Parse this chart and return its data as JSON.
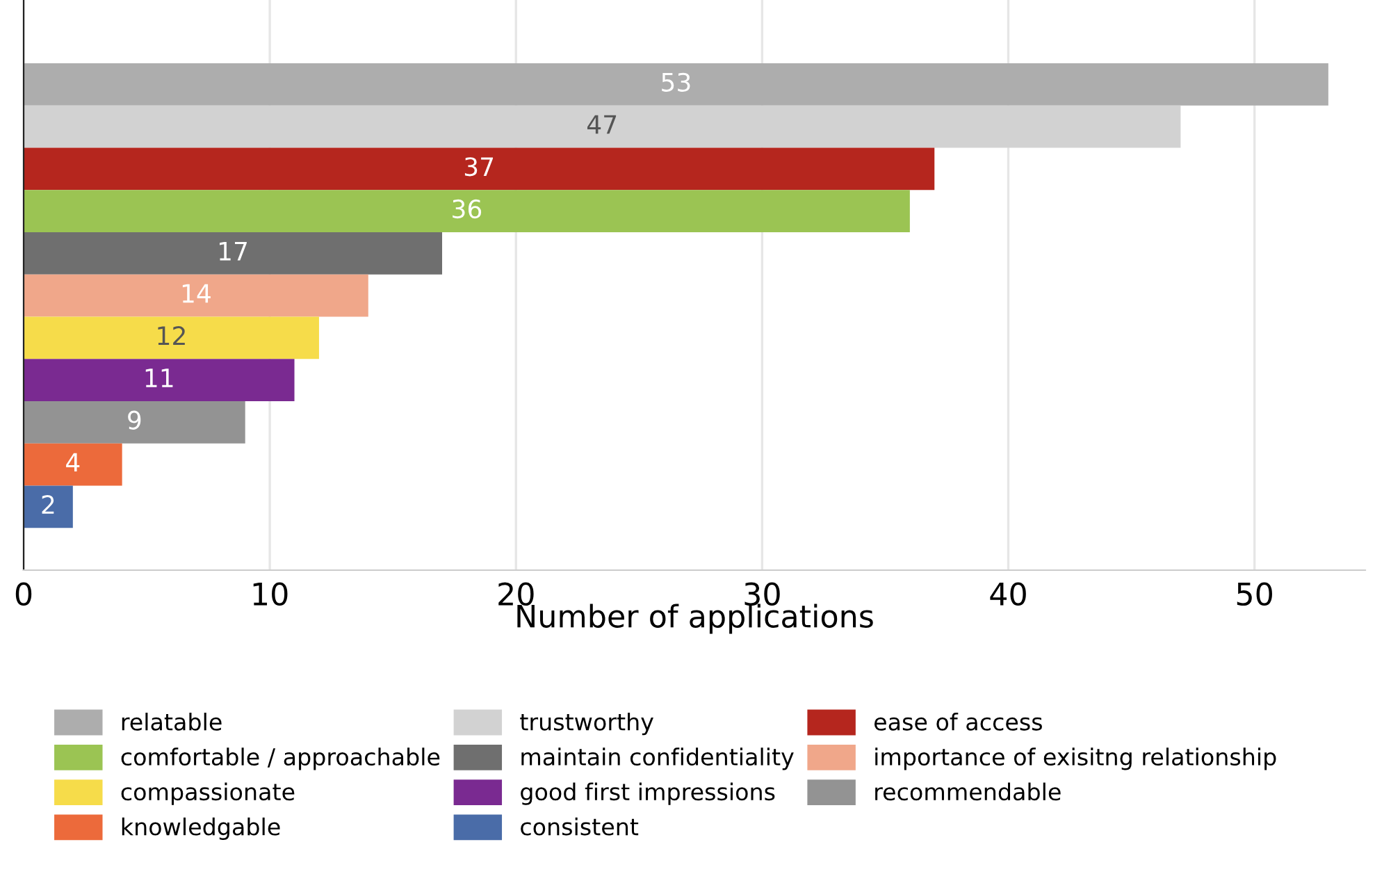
{
  "chart_data": {
    "type": "bar",
    "orientation": "horizontal",
    "stacked": true,
    "xlabel": "Number of applications",
    "categories": [
      null,
      null,
      null,
      null,
      null,
      null,
      null,
      null,
      null,
      null,
      null
    ],
    "series": [
      {
        "name": "relatable",
        "color": "#adadad",
        "values": [
          53,
          null,
          null,
          null,
          null,
          null,
          null,
          null,
          null,
          null,
          null
        ]
      },
      {
        "name": "trustworthy",
        "color": "#d2d2d2",
        "values": [
          null,
          47,
          null,
          null,
          null,
          null,
          null,
          null,
          null,
          null,
          null
        ]
      },
      {
        "name": "ease of access",
        "color": "#b5261e",
        "values": [
          null,
          null,
          37,
          null,
          null,
          null,
          null,
          null,
          null,
          null,
          null
        ]
      },
      {
        "name": "comfortable / approachable",
        "color": "#9bc453",
        "values": [
          null,
          null,
          null,
          36,
          null,
          null,
          null,
          null,
          null,
          null,
          null
        ]
      },
      {
        "name": "maintain confidentiality",
        "color": "#6f6f6f",
        "values": [
          null,
          null,
          null,
          null,
          17,
          null,
          null,
          null,
          null,
          null,
          null
        ]
      },
      {
        "name": "importance of exisitng relationship",
        "color": "#f0a78a",
        "values": [
          null,
          null,
          null,
          null,
          null,
          14,
          null,
          null,
          null,
          null,
          null
        ]
      },
      {
        "name": "compassionate",
        "color": "#f6dc4a",
        "values": [
          null,
          null,
          null,
          null,
          null,
          null,
          12,
          null,
          null,
          null,
          null
        ]
      },
      {
        "name": "good first impressions",
        "color": "#7a2a91",
        "values": [
          null,
          null,
          null,
          null,
          null,
          null,
          null,
          11,
          null,
          null,
          null
        ]
      },
      {
        "name": "recommendable",
        "color": "#939393",
        "values": [
          null,
          null,
          null,
          null,
          null,
          null,
          null,
          null,
          9,
          null,
          null
        ]
      },
      {
        "name": "knowledgable",
        "color": "#ec6a3b",
        "values": [
          null,
          null,
          null,
          null,
          null,
          null,
          null,
          null,
          null,
          4,
          null
        ]
      },
      {
        "name": "consistent",
        "color": "#4a6ca8",
        "values": [
          null,
          null,
          null,
          null,
          null,
          null,
          null,
          null,
          null,
          null,
          2
        ]
      }
    ],
    "xlim": [
      0,
      54.5
    ],
    "xticks": [
      0,
      10,
      20,
      30,
      40,
      50
    ],
    "grid": "x",
    "legend": "bottom",
    "data_labels": true,
    "tick_labels": "x"
  }
}
